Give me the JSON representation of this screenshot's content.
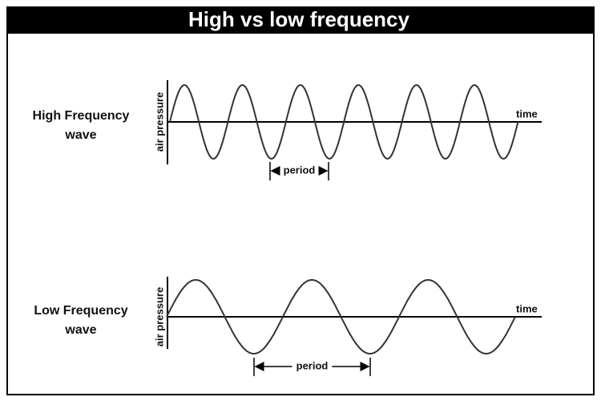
{
  "title": "High vs low frequency",
  "panels": [
    {
      "label_lines": [
        "High Frequency",
        "wave"
      ],
      "y_axis_label": "air pressure",
      "x_axis_label": "time",
      "period_label": "period"
    },
    {
      "label_lines": [
        "Low Frequency",
        "wave"
      ],
      "y_axis_label": "air pressure",
      "x_axis_label": "time",
      "period_label": "period"
    }
  ]
}
